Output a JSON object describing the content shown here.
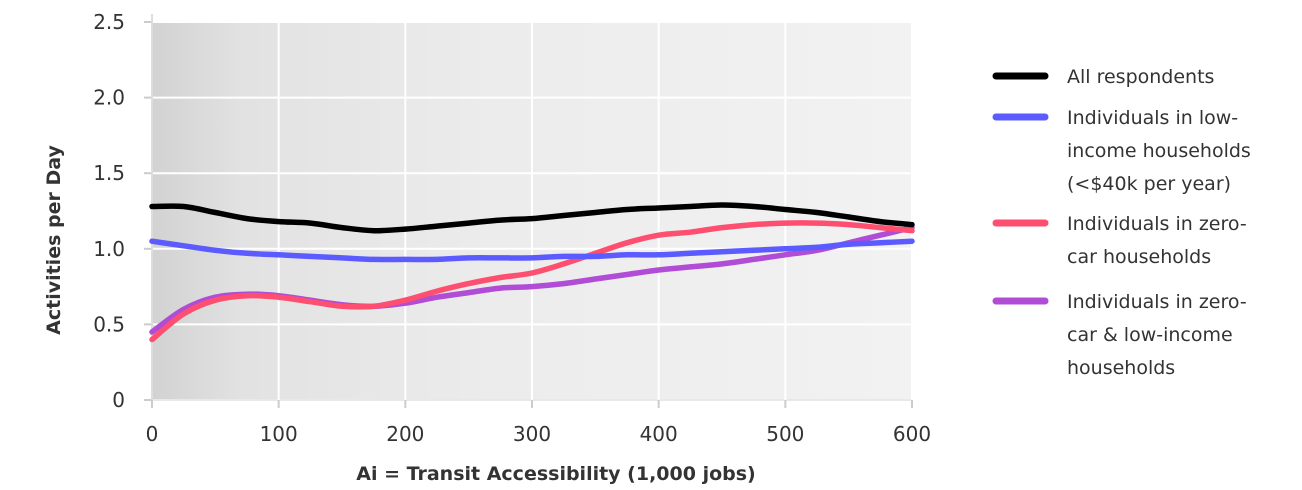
{
  "chart_data": {
    "type": "line",
    "xlabel": "Ai = Transit Accessibility (1,000 jobs)",
    "ylabel": "Activities per Day",
    "xlim": [
      0,
      600
    ],
    "ylim": [
      0,
      2.5
    ],
    "x_ticks": [
      0,
      100,
      200,
      300,
      400,
      500,
      600
    ],
    "y_ticks": [
      0,
      0.5,
      1.0,
      1.5,
      2.0,
      2.5
    ],
    "x_tick_labels": [
      "0",
      "100",
      "200",
      "300",
      "400",
      "500",
      "600"
    ],
    "y_tick_labels": [
      "0",
      "0.5",
      "1.0",
      "1.5",
      "2.0",
      "2.5"
    ],
    "grid": true,
    "legend_position": "right",
    "x": [
      0,
      25,
      50,
      75,
      100,
      125,
      150,
      175,
      200,
      225,
      250,
      275,
      300,
      325,
      350,
      375,
      400,
      425,
      450,
      475,
      500,
      525,
      550,
      575,
      600
    ],
    "series": [
      {
        "name_lines": [
          "All respondents"
        ],
        "color": "#000000",
        "values": [
          1.28,
          1.28,
          1.24,
          1.2,
          1.18,
          1.17,
          1.14,
          1.12,
          1.13,
          1.15,
          1.17,
          1.19,
          1.2,
          1.22,
          1.24,
          1.26,
          1.27,
          1.28,
          1.29,
          1.28,
          1.26,
          1.24,
          1.21,
          1.18,
          1.16
        ]
      },
      {
        "name_lines": [
          "Individuals in low-",
          "income households",
          "(<$40k per year)"
        ],
        "color": "#5b5bff",
        "values": [
          1.05,
          1.02,
          0.99,
          0.97,
          0.96,
          0.95,
          0.94,
          0.93,
          0.93,
          0.93,
          0.94,
          0.94,
          0.94,
          0.95,
          0.95,
          0.96,
          0.96,
          0.97,
          0.98,
          0.99,
          1.0,
          1.01,
          1.03,
          1.04,
          1.05
        ]
      },
      {
        "name_lines": [
          "Individuals in zero-",
          "car households"
        ],
        "color": "#ff4f70",
        "values": [
          0.4,
          0.57,
          0.66,
          0.69,
          0.68,
          0.65,
          0.62,
          0.62,
          0.66,
          0.72,
          0.77,
          0.81,
          0.84,
          0.9,
          0.97,
          1.04,
          1.09,
          1.11,
          1.14,
          1.16,
          1.17,
          1.17,
          1.16,
          1.14,
          1.12
        ]
      },
      {
        "name_lines": [
          "Individuals in zero-",
          "car & low-income",
          "households"
        ],
        "color": "#b04cd6",
        "values": [
          0.45,
          0.6,
          0.68,
          0.7,
          0.69,
          0.66,
          0.63,
          0.62,
          0.64,
          0.68,
          0.71,
          0.74,
          0.75,
          0.77,
          0.8,
          0.83,
          0.86,
          0.88,
          0.9,
          0.93,
          0.96,
          0.99,
          1.04,
          1.09,
          1.14
        ]
      }
    ]
  }
}
